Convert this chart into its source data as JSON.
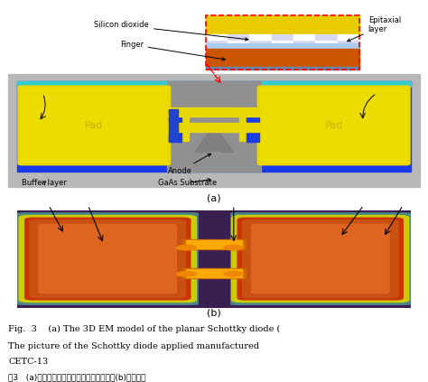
{
  "fig_width": 4.74,
  "fig_height": 4.23,
  "dpi": 100,
  "bg_color": "#ffffff",
  "label_a": "(a)",
  "label_b": "(b)",
  "caption_line1": "Fig.  3    (a) The 3D EM model of the planar Schottky diode (",
  "caption_line2": "The picture of the Schottky diode applied manufactured",
  "caption_line3": "CETC-13",
  "caption_line4": "图3   (a)平面肖特基二极管的三维电磁模型，(b)电中心一",
  "colors": {
    "bg_gray": "#c8c8c8",
    "substrate_gray": "#b0b0b0",
    "blue_frame": "#1a3aee",
    "pad_yellow": "#e8d800",
    "pad_yellow_inner": "#f0e000",
    "pad_outline": "#c8a000",
    "center_gray": "#909090",
    "center_dark": "#505050",
    "anode_gray": "#808080",
    "finger_yellow": "#e8d800",
    "blue_connector": "#2244bb",
    "orange_finger": "#dd6600",
    "inset_bg": "#f8f0e0",
    "inset_yellow": "#e8cc00",
    "inset_orange": "#cc5500",
    "inset_blue": "#88bbdd",
    "inset_check1": "#d0d8ff",
    "inset_check2": "#ffffff",
    "photo_bg": "#3a2050",
    "photo_pad": "#c85000",
    "photo_pad_mid": "#dd6010",
    "photo_pad_bright": "#e87020",
    "photo_cyan": "#40a8a8",
    "photo_yellow": "#ddcc00",
    "photo_finger": "#ffaa00",
    "photo_center_dark": "#4a3080"
  }
}
